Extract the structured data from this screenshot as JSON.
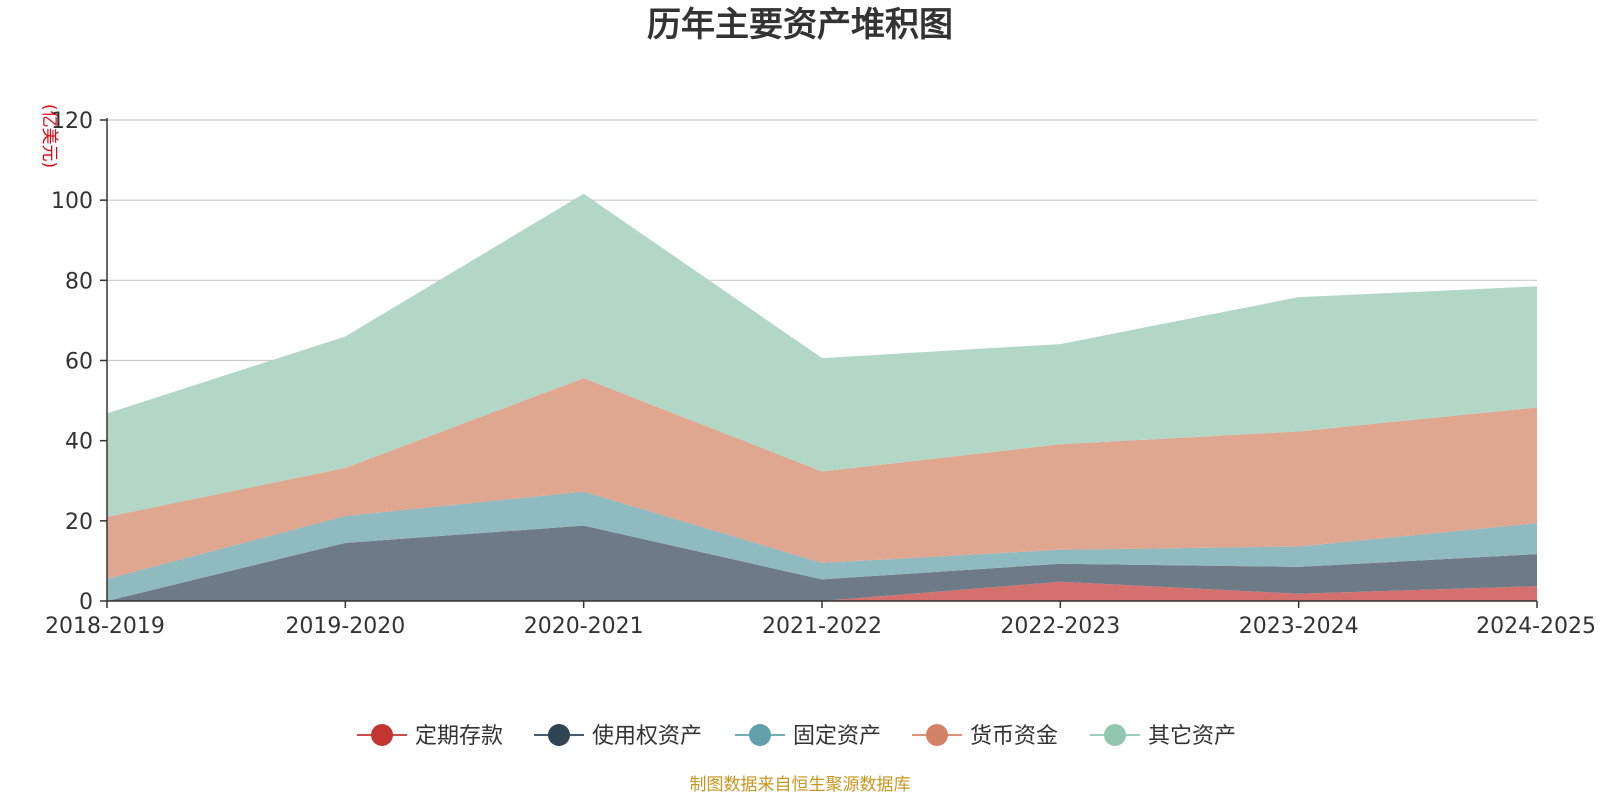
{
  "chart_data": {
    "type": "area",
    "stacked": true,
    "title": "历年主要资产堆积图",
    "ylabel": "(亿美元)",
    "xlabel": "",
    "categories": [
      "2018-2019",
      "2019-2020",
      "2020-2021",
      "2021-2022",
      "2022-2023",
      "2023-2024",
      "2024-2025"
    ],
    "ylim": [
      0,
      120
    ],
    "yticks": [
      0,
      20,
      40,
      60,
      80,
      100,
      120
    ],
    "grid": true,
    "legend_position": "bottom",
    "series": [
      {
        "name": "定期存款",
        "color": "#c23531",
        "fill": "#d4716f",
        "values": [
          0,
          0,
          0,
          0,
          4.8,
          1.8,
          3.7
        ]
      },
      {
        "name": "使用权资产",
        "color": "#2f4554",
        "fill": "#6e7b86",
        "values": [
          0,
          14.5,
          18.8,
          5.4,
          4.5,
          6.7,
          8.0
        ]
      },
      {
        "name": "固定资产",
        "color": "#61a0a8",
        "fill": "#8fbac0",
        "values": [
          5.5,
          6.7,
          8.5,
          4.1,
          3.5,
          5.1,
          7.7
        ]
      },
      {
        "name": "货币资金",
        "color": "#d48265",
        "fill": "#dfa690",
        "values": [
          15.5,
          12.0,
          28.3,
          22.8,
          26.3,
          28.7,
          28.9
        ]
      },
      {
        "name": "其它资产",
        "color": "#91c7ae",
        "fill": "#b2d7c6",
        "values": [
          25.8,
          32.8,
          46.0,
          28.3,
          25.0,
          33.5,
          30.2
        ]
      }
    ]
  },
  "footer": {
    "source": "制图数据来自恒生聚源数据库"
  }
}
